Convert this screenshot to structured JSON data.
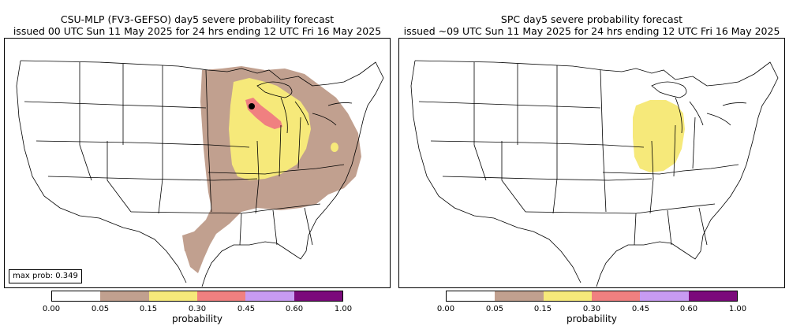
{
  "panels": [
    {
      "title_line1": "CSU-MLP (FV3-GEFSO) day5 severe probability forecast",
      "title_line2": "issued 00 UTC Sun 11 May 2025 for 24 hrs ending 12 UTC Fri 16 May 2025",
      "max_prob_text": "max prob: 0.349"
    },
    {
      "title_line1": "SPC day5 severe probability forecast",
      "title_line2": "issued ~09 UTC Sun 11 May 2025 for 24 hrs ending 12 UTC Fri 16 May 2025"
    }
  ],
  "colorbar": {
    "label": "probability",
    "ticks": [
      "0.00",
      "0.05",
      "0.15",
      "0.30",
      "0.45",
      "0.60",
      "1.00"
    ],
    "colors": [
      "#ffffff",
      "#c1a08f",
      "#f6e97a",
      "#f08080",
      "#c89bf2",
      "#7b0a7b"
    ]
  },
  "legend_levels": {
    "p05": "#c1a08f",
    "p15": "#f6e97a",
    "p30": "#f08080",
    "max_marker": "#000000"
  }
}
